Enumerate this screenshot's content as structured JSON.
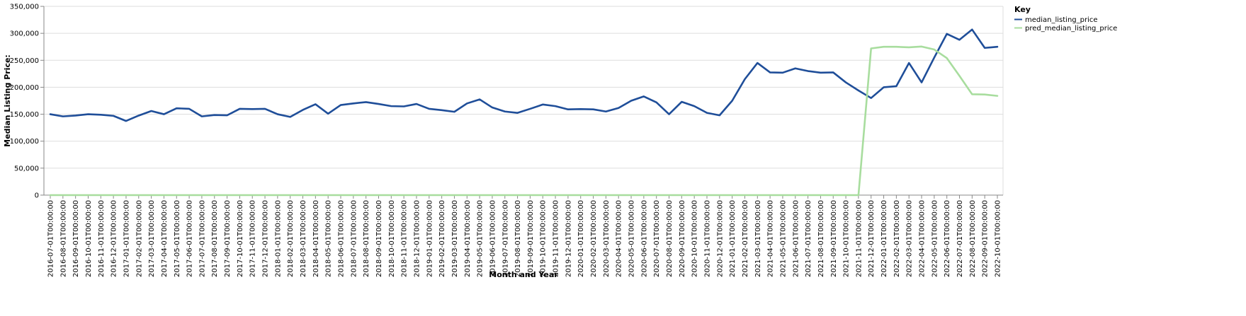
{
  "chart_data": {
    "type": "line",
    "xlabel": "Month and Year",
    "ylabel": "Median Listing Price:",
    "ylim": [
      0,
      350000
    ],
    "y_ticks": [
      "0",
      "50,000",
      "100,000",
      "150,000",
      "200,000",
      "250,000",
      "300,000",
      "350,000"
    ],
    "y_tick_values": [
      0,
      50000,
      100000,
      150000,
      200000,
      250000,
      300000,
      350000
    ],
    "grid": true,
    "legend": {
      "title": "Key",
      "placement": "top-right"
    },
    "categories": [
      "2016-07-01T00:00:00",
      "2016-08-01T00:00:00",
      "2016-09-01T00:00:00",
      "2016-10-01T00:00:00",
      "2016-11-01T00:00:00",
      "2016-12-01T00:00:00",
      "2017-01-01T00:00:00",
      "2017-02-01T00:00:00",
      "2017-03-01T00:00:00",
      "2017-04-01T00:00:00",
      "2017-05-01T00:00:00",
      "2017-06-01T00:00:00",
      "2017-07-01T00:00:00",
      "2017-08-01T00:00:00",
      "2017-09-01T00:00:00",
      "2017-10-01T00:00:00",
      "2017-11-01T00:00:00",
      "2017-12-01T00:00:00",
      "2018-01-01T00:00:00",
      "2018-02-01T00:00:00",
      "2018-03-01T00:00:00",
      "2018-04-01T00:00:00",
      "2018-05-01T00:00:00",
      "2018-06-01T00:00:00",
      "2018-07-01T00:00:00",
      "2018-08-01T00:00:00",
      "2018-09-01T00:00:00",
      "2018-10-01T00:00:00",
      "2018-11-01T00:00:00",
      "2018-12-01T00:00:00",
      "2019-01-01T00:00:00",
      "2019-02-01T00:00:00",
      "2019-03-01T00:00:00",
      "2019-04-01T00:00:00",
      "2019-05-01T00:00:00",
      "2019-06-01T00:00:00",
      "2019-07-01T00:00:00",
      "2019-08-01T00:00:00",
      "2019-09-01T00:00:00",
      "2019-10-01T00:00:00",
      "2019-11-01T00:00:00",
      "2019-12-01T00:00:00",
      "2020-01-01T00:00:00",
      "2020-02-01T00:00:00",
      "2020-03-01T00:00:00",
      "2020-04-01T00:00:00",
      "2020-05-01T00:00:00",
      "2020-06-01T00:00:00",
      "2020-07-01T00:00:00",
      "2020-08-01T00:00:00",
      "2020-09-01T00:00:00",
      "2020-10-01T00:00:00",
      "2020-11-01T00:00:00",
      "2020-12-01T00:00:00",
      "2021-01-01T00:00:00",
      "2021-02-01T00:00:00",
      "2021-03-01T00:00:00",
      "2021-04-01T00:00:00",
      "2021-05-01T00:00:00",
      "2021-06-01T00:00:00",
      "2021-07-01T00:00:00",
      "2021-08-01T00:00:00",
      "2021-09-01T00:00:00",
      "2021-10-01T00:00:00",
      "2021-11-01T00:00:00",
      "2021-12-01T00:00:00",
      "2022-01-01T00:00:00",
      "2022-02-01T00:00:00",
      "2022-03-01T00:00:00",
      "2022-04-01T00:00:00",
      "2022-05-01T00:00:00",
      "2022-06-01T00:00:00",
      "2022-07-01T00:00:00",
      "2022-08-01T00:00:00",
      "2022-09-01T00:00:00",
      "2022-10-01T00:00:00"
    ],
    "series": [
      {
        "name": "median_listing_price",
        "color": "#1f4e99",
        "values": [
          150000,
          146000,
          147500,
          150000,
          149000,
          147000,
          137500,
          147500,
          156000,
          150000,
          161000,
          160000,
          146000,
          148500,
          148000,
          160000,
          159500,
          160000,
          150000,
          145000,
          158000,
          168500,
          151000,
          167000,
          170000,
          172500,
          169000,
          165000,
          164500,
          169000,
          160000,
          157500,
          154500,
          170000,
          177500,
          162500,
          155000,
          152500,
          160000,
          168000,
          165000,
          159000,
          159500,
          159000,
          155000,
          161500,
          175000,
          183000,
          172000,
          150000,
          173000,
          165000,
          152500,
          148000,
          175000,
          215000,
          245000,
          227500,
          227000,
          235000,
          230000,
          227000,
          227500,
          209000,
          194000,
          180000,
          200000,
          202000,
          245000,
          209000,
          255000,
          299000,
          288000,
          307000,
          273000,
          275000
        ]
      },
      {
        "name": "pred_median_listing_price",
        "color": "#a8dd9e",
        "values": [
          0,
          0,
          0,
          0,
          0,
          0,
          0,
          0,
          0,
          0,
          0,
          0,
          0,
          0,
          0,
          0,
          0,
          0,
          0,
          0,
          0,
          0,
          0,
          0,
          0,
          0,
          0,
          0,
          0,
          0,
          0,
          0,
          0,
          0,
          0,
          0,
          0,
          0,
          0,
          0,
          0,
          0,
          0,
          0,
          0,
          0,
          0,
          0,
          0,
          0,
          0,
          0,
          0,
          0,
          0,
          0,
          0,
          0,
          0,
          0,
          0,
          0,
          0,
          0,
          0,
          272000,
          275000,
          275000,
          274000,
          275500,
          270000,
          254000,
          221000,
          187000,
          186500,
          184000
        ]
      }
    ]
  }
}
